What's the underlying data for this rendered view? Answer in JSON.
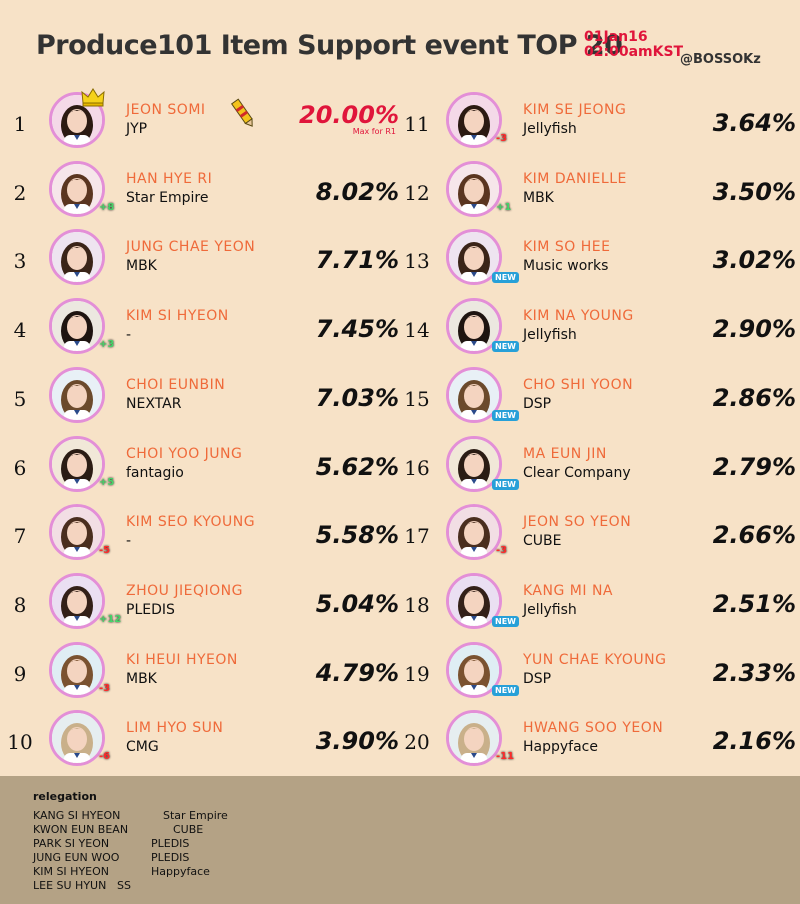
{
  "header": {
    "title": "Produce101 Item Support event TOP 20",
    "date_line1": "01Jan16",
    "date_line2": "02:00amKST",
    "handle": "@BOSSOKz"
  },
  "colors": {
    "background": "#f7e2c7",
    "name": "#ef6a3a",
    "accent_red": "#e0153b",
    "avatar_ring": "#e38fd7",
    "footer": "#b4a285"
  },
  "entries": [
    {
      "rank": "1",
      "name": "JEON SOMI",
      "agency": "JYP",
      "percent": "20.00%",
      "note": "Max for R1",
      "change": ""
    },
    {
      "rank": "2",
      "name": "HAN HYE RI",
      "agency": "Star Empire",
      "percent": "8.02%",
      "change": "+8"
    },
    {
      "rank": "3",
      "name": "JUNG CHAE YEON",
      "agency": "MBK",
      "percent": "7.71%",
      "change": ""
    },
    {
      "rank": "4",
      "name": "KIM SI HYEON",
      "agency": "-",
      "percent": "7.45%",
      "change": "+3"
    },
    {
      "rank": "5",
      "name": "CHOI EUNBIN",
      "agency": "NEXTAR",
      "percent": "7.03%",
      "change": ""
    },
    {
      "rank": "6",
      "name": "CHOI YOO JUNG",
      "agency": "fantagio",
      "percent": "5.62%",
      "change": "+5"
    },
    {
      "rank": "7",
      "name": "KIM SEO KYOUNG",
      "agency": "-",
      "percent": "5.58%",
      "change": "-5"
    },
    {
      "rank": "8",
      "name": "ZHOU JIEQIONG",
      "agency": "PLEDIS",
      "percent": "5.04%",
      "change": "+12"
    },
    {
      "rank": "9",
      "name": "KI HEUI HYEON",
      "agency": "MBK",
      "percent": "4.79%",
      "change": "-3"
    },
    {
      "rank": "10",
      "name": "LIM HYO SUN",
      "agency": "CMG",
      "percent": "3.90%",
      "change": "-6"
    },
    {
      "rank": "11",
      "name": "KIM SE JEONG",
      "agency": "Jellyfish",
      "percent": "3.64%",
      "change": "-3"
    },
    {
      "rank": "12",
      "name": "KIM DANIELLE",
      "agency": "MBK",
      "percent": "3.50%",
      "change": "+1"
    },
    {
      "rank": "13",
      "name": "KIM SO HEE",
      "agency": "Music works",
      "percent": "3.02%",
      "change": "NEW"
    },
    {
      "rank": "14",
      "name": "KIM NA YOUNG",
      "agency": "Jellyfish",
      "percent": "2.90%",
      "change": "NEW"
    },
    {
      "rank": "15",
      "name": "CHO SHI YOON",
      "agency": "DSP",
      "percent": "2.86%",
      "change": "NEW"
    },
    {
      "rank": "16",
      "name": "MA EUN JIN",
      "agency": "Clear Company",
      "percent": "2.79%",
      "change": "NEW"
    },
    {
      "rank": "17",
      "name": "JEON SO YEON",
      "agency": "CUBE",
      "percent": "2.66%",
      "change": "-3"
    },
    {
      "rank": "18",
      "name": "KANG MI NA",
      "agency": "Jellyfish",
      "percent": "2.51%",
      "change": "NEW"
    },
    {
      "rank": "19",
      "name": "YUN CHAE KYOUNG",
      "agency": "DSP",
      "percent": "2.33%",
      "change": "NEW"
    },
    {
      "rank": "20",
      "name": "HWANG SOO YEON",
      "agency": "Happyface",
      "percent": "2.16%",
      "change": "-11"
    }
  ],
  "relegation": {
    "title": "relegation",
    "items": [
      {
        "name": "KANG SI HYEON",
        "agency": "Star Empire"
      },
      {
        "name": "KWON EUN BEAN",
        "agency": "CUBE"
      },
      {
        "name": "PARK SI YEON",
        "agency": "PLEDIS"
      },
      {
        "name": "JUNG EUN WOO",
        "agency": "PLEDIS"
      },
      {
        "name": "KIM SI HYEON",
        "agency": "Happyface"
      },
      {
        "name": "LEE SU HYUN",
        "agency": "SS"
      }
    ]
  }
}
